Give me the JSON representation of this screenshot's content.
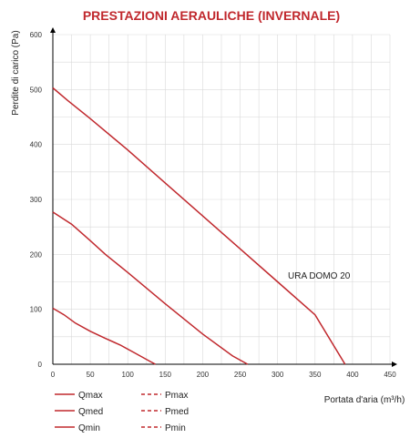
{
  "chart_data": {
    "type": "line",
    "title": "PRESTAZIONI AERAULICHE (INVERNALE)",
    "xlabel": "Portata d'aria (m³/h)",
    "ylabel": "Perdite di carico  (Pa)",
    "xlim": [
      0,
      450
    ],
    "ylim": [
      0,
      600
    ],
    "xticks": [
      "0",
      "50",
      "100",
      "150",
      "200",
      "250",
      "300",
      "350",
      "400",
      "450"
    ],
    "yticks": [
      "0",
      "100",
      "200",
      "300",
      "400",
      "500",
      "600"
    ],
    "grid": true,
    "annotation": "URA DOMO 20",
    "series": [
      {
        "name": "Qmax",
        "style": "solid",
        "color": "#c0282d",
        "x": [
          0,
          20,
          50,
          100,
          150,
          200,
          250,
          300,
          350,
          390
        ],
        "y": [
          503,
          480,
          447,
          390,
          330,
          270,
          210,
          150,
          90,
          0
        ]
      },
      {
        "name": "Qmed",
        "style": "solid",
        "color": "#c0282d",
        "x": [
          0,
          25,
          50,
          70,
          100,
          150,
          200,
          240,
          260
        ],
        "y": [
          277,
          255,
          225,
          200,
          167,
          110,
          55,
          15,
          0
        ]
      },
      {
        "name": "Qmin",
        "style": "solid",
        "color": "#c0282d",
        "x": [
          0,
          15,
          30,
          50,
          70,
          90,
          110,
          130,
          137
        ],
        "y": [
          102,
          90,
          75,
          60,
          47,
          35,
          20,
          5,
          0
        ]
      },
      {
        "name": "Pmax",
        "style": "dashed",
        "color": "#c0282d",
        "x": [],
        "y": []
      },
      {
        "name": "Pmed",
        "style": "dashed",
        "color": "#c0282d",
        "x": [],
        "y": []
      },
      {
        "name": "Pmin",
        "style": "dashed",
        "color": "#c0282d",
        "x": [],
        "y": []
      }
    ],
    "legend": [
      "Qmax",
      "Pmax",
      "Qmed",
      "Pmed",
      "Qmin",
      "Pmin"
    ],
    "legend_placement": "bottom-left"
  },
  "colors": {
    "title": "#c0282d",
    "series": "#c0282d",
    "grid": "#d9d9d9",
    "axis": "#000000"
  }
}
